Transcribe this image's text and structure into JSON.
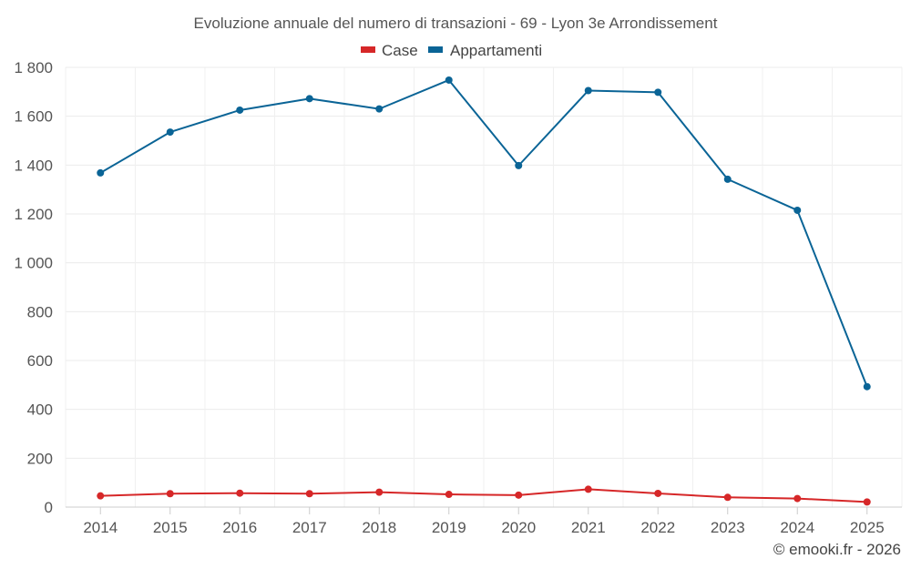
{
  "chart_data": {
    "type": "line",
    "title": "Evoluzione annuale del numero di transazioni - 69 - Lyon 3e Arrondissement",
    "xlabel": "",
    "ylabel": "",
    "categories": [
      "2014",
      "2015",
      "2016",
      "2017",
      "2018",
      "2019",
      "2020",
      "2021",
      "2022",
      "2023",
      "2024",
      "2025"
    ],
    "ylim": [
      0,
      1800
    ],
    "yticks": [
      0,
      200,
      400,
      600,
      800,
      1000,
      1200,
      1400,
      1600,
      1800
    ],
    "ytick_labels": [
      "0",
      "200",
      "400",
      "600",
      "800",
      "1 000",
      "1 200",
      "1 400",
      "1 600",
      "1 800"
    ],
    "grid": true,
    "legend_position": "top-center",
    "series": [
      {
        "name": "Case",
        "color": "#d62728",
        "values": [
          46,
          55,
          57,
          55,
          61,
          52,
          49,
          73,
          56,
          40,
          35,
          21
        ]
      },
      {
        "name": "Appartamenti",
        "color": "#0a6496",
        "values": [
          1368,
          1535,
          1625,
          1672,
          1630,
          1748,
          1398,
          1705,
          1698,
          1342,
          1215,
          493
        ]
      }
    ],
    "credit": "© emooki.fr - 2026"
  }
}
